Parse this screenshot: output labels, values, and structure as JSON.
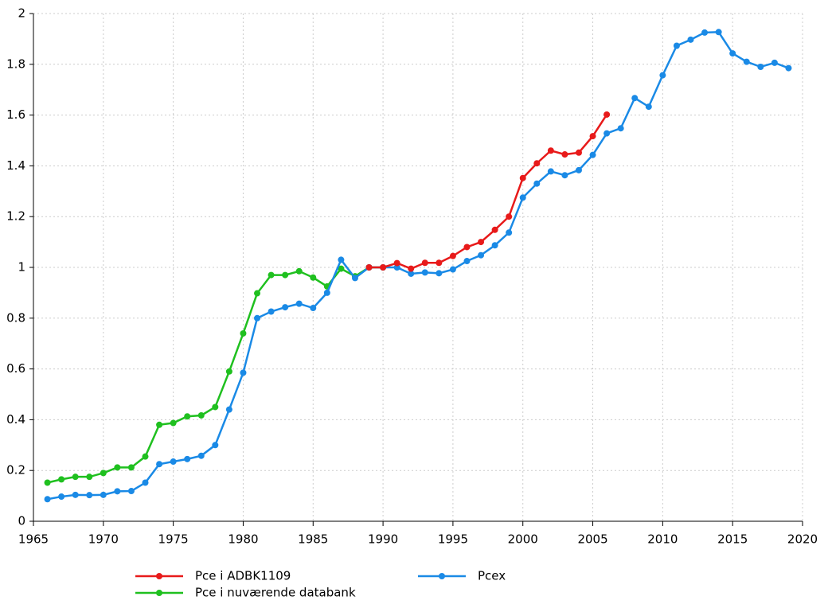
{
  "chart_data": {
    "type": "line",
    "x": [
      1966,
      1967,
      1968,
      1969,
      1970,
      1971,
      1972,
      1973,
      1974,
      1975,
      1976,
      1977,
      1978,
      1979,
      1980,
      1981,
      1982,
      1983,
      1984,
      1985,
      1986,
      1987,
      1988,
      1989,
      1990,
      1991,
      1992,
      1993,
      1994,
      1995,
      1996,
      1997,
      1998,
      1999,
      2000,
      2001,
      2002,
      2003,
      2004,
      2005,
      2006,
      2007,
      2008,
      2009,
      2010,
      2011,
      2012,
      2013,
      2014,
      2015,
      2016,
      2017,
      2018,
      2019
    ],
    "series": [
      {
        "name": "Pce i nuværende databank",
        "color": "#1fc01f",
        "values": [
          0.152,
          0.165,
          0.175,
          0.175,
          0.19,
          0.212,
          0.212,
          0.255,
          0.38,
          0.387,
          0.413,
          0.417,
          0.45,
          0.59,
          0.74,
          0.898,
          0.97,
          0.97,
          0.985,
          0.96,
          0.925,
          0.995,
          0.965,
          1.0,
          1.0,
          null,
          null,
          null,
          null,
          null,
          null,
          null,
          null,
          null,
          null,
          null,
          null,
          null,
          null,
          null,
          null,
          null,
          null,
          null,
          null,
          null,
          null,
          null,
          null,
          null,
          null,
          null,
          null,
          null
        ]
      },
      {
        "name": "Pcex",
        "color": "#1a8ae6",
        "values": [
          0.087,
          0.097,
          0.104,
          0.103,
          0.104,
          0.118,
          0.119,
          0.152,
          0.225,
          0.235,
          0.245,
          0.258,
          0.3,
          0.44,
          0.585,
          0.8,
          0.826,
          0.843,
          0.857,
          0.84,
          0.9,
          1.03,
          0.958,
          1.0,
          1.0,
          1.0,
          0.975,
          0.98,
          0.977,
          0.992,
          1.025,
          1.048,
          1.087,
          1.137,
          1.275,
          1.33,
          1.378,
          1.363,
          1.383,
          1.443,
          1.528,
          1.548,
          1.667,
          1.633,
          1.757,
          1.873,
          1.897,
          1.925,
          1.927,
          1.843,
          1.81,
          1.79,
          1.806,
          1.785
        ]
      },
      {
        "name": "Pce i ADBK1109",
        "color": "#e81a1a",
        "values": [
          null,
          null,
          null,
          null,
          null,
          null,
          null,
          null,
          null,
          null,
          null,
          null,
          null,
          null,
          null,
          null,
          null,
          null,
          null,
          null,
          null,
          null,
          null,
          1.0,
          1.0,
          1.017,
          0.995,
          1.018,
          1.018,
          1.045,
          1.08,
          1.1,
          1.148,
          1.2,
          1.352,
          1.41,
          1.46,
          1.445,
          1.452,
          1.517,
          1.602,
          null,
          null,
          null,
          null,
          null,
          null,
          null,
          null,
          null,
          null,
          null,
          null,
          null
        ]
      }
    ],
    "xlim": [
      1965,
      2020
    ],
    "xticks": [
      1965,
      1970,
      1975,
      1980,
      1985,
      1990,
      1995,
      2000,
      2005,
      2010,
      2015,
      2020
    ],
    "ylim": [
      0,
      2
    ],
    "yticks": [
      0,
      0.2,
      0.4,
      0.6,
      0.8,
      1,
      1.2,
      1.4,
      1.6,
      1.8,
      2
    ],
    "grid": true
  }
}
